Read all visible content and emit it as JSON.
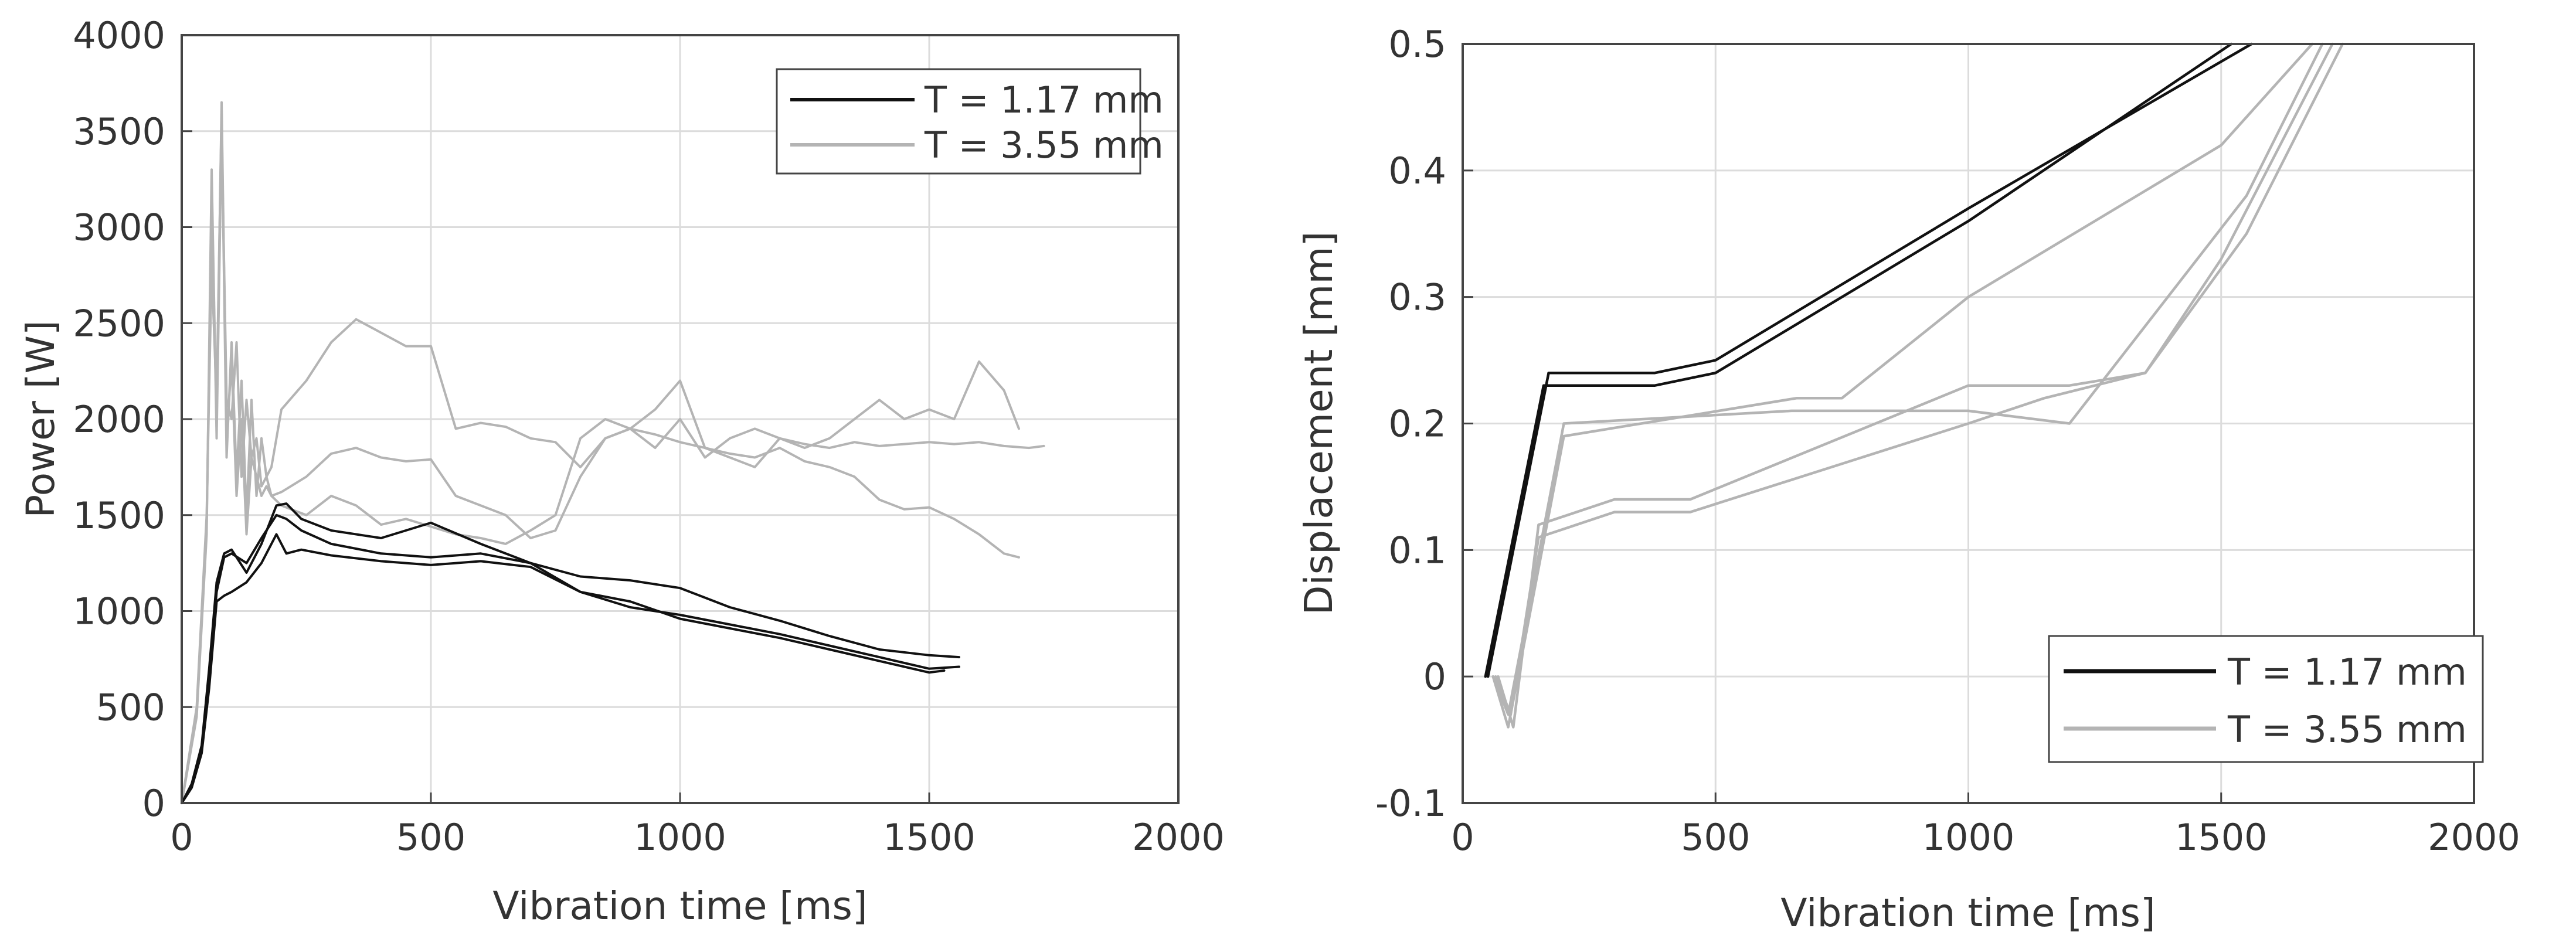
{
  "chart_data": [
    {
      "type": "line",
      "title": "",
      "xlabel": "Vibration time [ms]",
      "ylabel": "Power [W]",
      "xlim": [
        0,
        2000
      ],
      "ylim": [
        0,
        4000
      ],
      "xticks": [
        0,
        500,
        1000,
        1500,
        2000
      ],
      "yticks": [
        0,
        500,
        1000,
        1500,
        2000,
        2500,
        3000,
        3500,
        4000
      ],
      "xtick_labels": [
        "0",
        "500",
        "1000",
        "1500",
        "2000"
      ],
      "ytick_labels": [
        "0",
        "500",
        "1000",
        "1500",
        "2000",
        "2500",
        "3000",
        "3500",
        "4000"
      ],
      "grid": true,
      "legend_position": "top-right",
      "legend": [
        {
          "label": "T = 1.17 mm",
          "color": "#111111"
        },
        {
          "label": "T = 3.55 mm",
          "color": "#b4b4b4"
        }
      ],
      "series": [
        {
          "name": "T = 1.17 mm",
          "color": "#111111",
          "x": [
            0,
            20,
            40,
            55,
            70,
            85,
            100,
            130,
            160,
            190,
            210,
            240,
            300,
            400,
            500,
            600,
            700,
            800,
            900,
            1000,
            1100,
            1200,
            1300,
            1400,
            1500,
            1560
          ],
          "y": [
            0,
            100,
            300,
            700,
            1150,
            1300,
            1320,
            1200,
            1350,
            1550,
            1560,
            1480,
            1420,
            1380,
            1460,
            1350,
            1250,
            1180,
            1160,
            1120,
            1020,
            950,
            870,
            800,
            770,
            760
          ]
        },
        {
          "name": "T = 1.17 mm",
          "color": "#111111",
          "x": [
            0,
            20,
            40,
            55,
            70,
            85,
            100,
            130,
            160,
            190,
            210,
            240,
            300,
            400,
            500,
            600,
            700,
            800,
            900,
            1000,
            1100,
            1200,
            1300,
            1400,
            1500,
            1560
          ],
          "y": [
            0,
            90,
            280,
            650,
            1100,
            1280,
            1300,
            1250,
            1380,
            1500,
            1480,
            1420,
            1350,
            1300,
            1280,
            1300,
            1250,
            1100,
            1020,
            980,
            930,
            880,
            820,
            760,
            700,
            710
          ]
        },
        {
          "name": "T = 1.17 mm",
          "color": "#111111",
          "x": [
            0,
            20,
            40,
            55,
            70,
            85,
            100,
            130,
            160,
            190,
            210,
            240,
            300,
            400,
            500,
            600,
            700,
            800,
            900,
            1000,
            1100,
            1200,
            1300,
            1400,
            1500,
            1530
          ],
          "y": [
            0,
            80,
            260,
            600,
            1050,
            1080,
            1100,
            1150,
            1250,
            1400,
            1300,
            1320,
            1290,
            1260,
            1240,
            1260,
            1230,
            1100,
            1050,
            960,
            910,
            860,
            800,
            740,
            680,
            690
          ]
        },
        {
          "name": "T = 3.55 mm",
          "color": "#b4b4b4",
          "x": [
            0,
            30,
            50,
            60,
            70,
            80,
            90,
            100,
            110,
            120,
            130,
            140,
            150,
            160,
            170,
            180,
            200,
            250,
            300,
            350,
            400,
            450,
            500,
            550,
            600,
            650,
            700,
            750,
            800,
            850,
            900,
            950,
            1000,
            1050,
            1100,
            1150,
            1200,
            1250,
            1300,
            1350,
            1400,
            1450,
            1500,
            1550,
            1600,
            1650,
            1700,
            1730
          ],
          "y": [
            0,
            500,
            1500,
            2800,
            2100,
            3600,
            1800,
            2400,
            1700,
            2200,
            1500,
            2100,
            1600,
            1900,
            1700,
            1750,
            2050,
            2200,
            2400,
            2520,
            2450,
            2380,
            2380,
            1950,
            1980,
            1960,
            1900,
            1880,
            1750,
            1900,
            1950,
            1850,
            2000,
            1800,
            1900,
            1950,
            1900,
            1870,
            1850,
            1880,
            1860,
            1870,
            1880,
            1870,
            1880,
            1860,
            1850,
            1860
          ]
        },
        {
          "name": "T = 3.55 mm",
          "color": "#b4b4b4",
          "x": [
            0,
            30,
            50,
            60,
            70,
            80,
            90,
            100,
            110,
            120,
            130,
            140,
            150,
            160,
            170,
            180,
            200,
            250,
            300,
            350,
            400,
            450,
            500,
            550,
            600,
            650,
            700,
            750,
            800,
            850,
            900,
            950,
            1000,
            1050,
            1100,
            1150,
            1200,
            1250,
            1300,
            1350,
            1400,
            1450,
            1500,
            1550,
            1600,
            1650,
            1680
          ],
          "y": [
            0,
            450,
            1400,
            3300,
            1900,
            3500,
            2100,
            2000,
            2400,
            1700,
            2100,
            1800,
            1900,
            1650,
            1700,
            1600,
            1620,
            1700,
            1820,
            1850,
            1800,
            1780,
            1790,
            1600,
            1550,
            1500,
            1380,
            1420,
            1700,
            1900,
            1950,
            1920,
            1880,
            1850,
            1820,
            1800,
            1850,
            1780,
            1750,
            1700,
            1580,
            1530,
            1540,
            1480,
            1400,
            1300,
            1280
          ]
        },
        {
          "name": "T = 3.55 mm",
          "color": "#b4b4b4",
          "x": [
            0,
            30,
            50,
            60,
            70,
            80,
            90,
            100,
            110,
            120,
            130,
            140,
            150,
            160,
            170,
            180,
            200,
            250,
            300,
            350,
            400,
            450,
            500,
            550,
            600,
            650,
            700,
            750,
            800,
            850,
            900,
            950,
            1000,
            1050,
            1100,
            1150,
            1200,
            1250,
            1300,
            1350,
            1400,
            1450,
            1500,
            1550,
            1600,
            1650,
            1680
          ],
          "y": [
            0,
            480,
            1450,
            3100,
            2000,
            3650,
            1900,
            2300,
            1600,
            2000,
            1400,
            1800,
            1700,
            1600,
            1650,
            1600,
            1550,
            1500,
            1600,
            1550,
            1450,
            1480,
            1440,
            1400,
            1380,
            1350,
            1420,
            1500,
            1900,
            2000,
            1950,
            2050,
            2200,
            1850,
            1800,
            1750,
            1900,
            1850,
            1900,
            2000,
            2100,
            2000,
            2050,
            2000,
            2300,
            2150,
            1950
          ]
        }
      ]
    },
    {
      "type": "line",
      "title": "",
      "xlabel": "Vibration time [ms]",
      "ylabel": "Displacement [mm]",
      "xlim": [
        0,
        2000
      ],
      "ylim": [
        -0.1,
        0.5
      ],
      "xticks": [
        0,
        500,
        1000,
        1500,
        2000
      ],
      "yticks": [
        -0.1,
        0,
        0.1,
        0.2,
        0.3,
        0.4,
        0.5
      ],
      "xtick_labels": [
        "0",
        "500",
        "1000",
        "1500",
        "2000"
      ],
      "ytick_labels": [
        "-0.1",
        "0",
        "0.1",
        "0.2",
        "0.3",
        "0.4",
        "0.5"
      ],
      "grid": true,
      "legend_position": "bottom-right",
      "legend": [
        {
          "label": "T = 1.17 mm",
          "color": "#111111"
        },
        {
          "label": "T = 3.55 mm",
          "color": "#b4b4b4"
        }
      ],
      "series": [
        {
          "name": "T = 1.17 mm",
          "color": "#111111",
          "x": [
            50,
            170,
            380,
            500,
            1000,
            1560
          ],
          "y": [
            0,
            0.24,
            0.24,
            0.25,
            0.37,
            0.5
          ]
        },
        {
          "name": "T = 1.17 mm",
          "color": "#111111",
          "x": [
            45,
            160,
            380,
            500,
            1000,
            1520
          ],
          "y": [
            0,
            0.23,
            0.23,
            0.24,
            0.36,
            0.5
          ]
        },
        {
          "name": "T = 3.55 mm",
          "color": "#b4b4b4",
          "x": [
            60,
            90,
            200,
            660,
            750,
            1000,
            1500,
            1680
          ],
          "y": [
            0,
            -0.04,
            0.19,
            0.22,
            0.22,
            0.3,
            0.42,
            0.5
          ]
        },
        {
          "name": "T = 3.55 mm",
          "color": "#b4b4b4",
          "x": [
            60,
            90,
            200,
            650,
            1000,
            1200,
            1550,
            1700
          ],
          "y": [
            0,
            -0.03,
            0.2,
            0.21,
            0.21,
            0.2,
            0.38,
            0.5
          ]
        },
        {
          "name": "T = 3.55 mm",
          "color": "#b4b4b4",
          "x": [
            70,
            100,
            150,
            300,
            450,
            1000,
            1200,
            1350,
            1550,
            1740
          ],
          "y": [
            0,
            -0.04,
            0.12,
            0.14,
            0.14,
            0.23,
            0.23,
            0.24,
            0.35,
            0.5
          ]
        },
        {
          "name": "T = 3.55 mm",
          "color": "#b4b4b4",
          "x": [
            65,
            95,
            150,
            300,
            450,
            1000,
            1150,
            1350,
            1500,
            1720
          ],
          "y": [
            0,
            -0.03,
            0.11,
            0.13,
            0.13,
            0.2,
            0.22,
            0.24,
            0.33,
            0.5
          ]
        }
      ]
    }
  ]
}
